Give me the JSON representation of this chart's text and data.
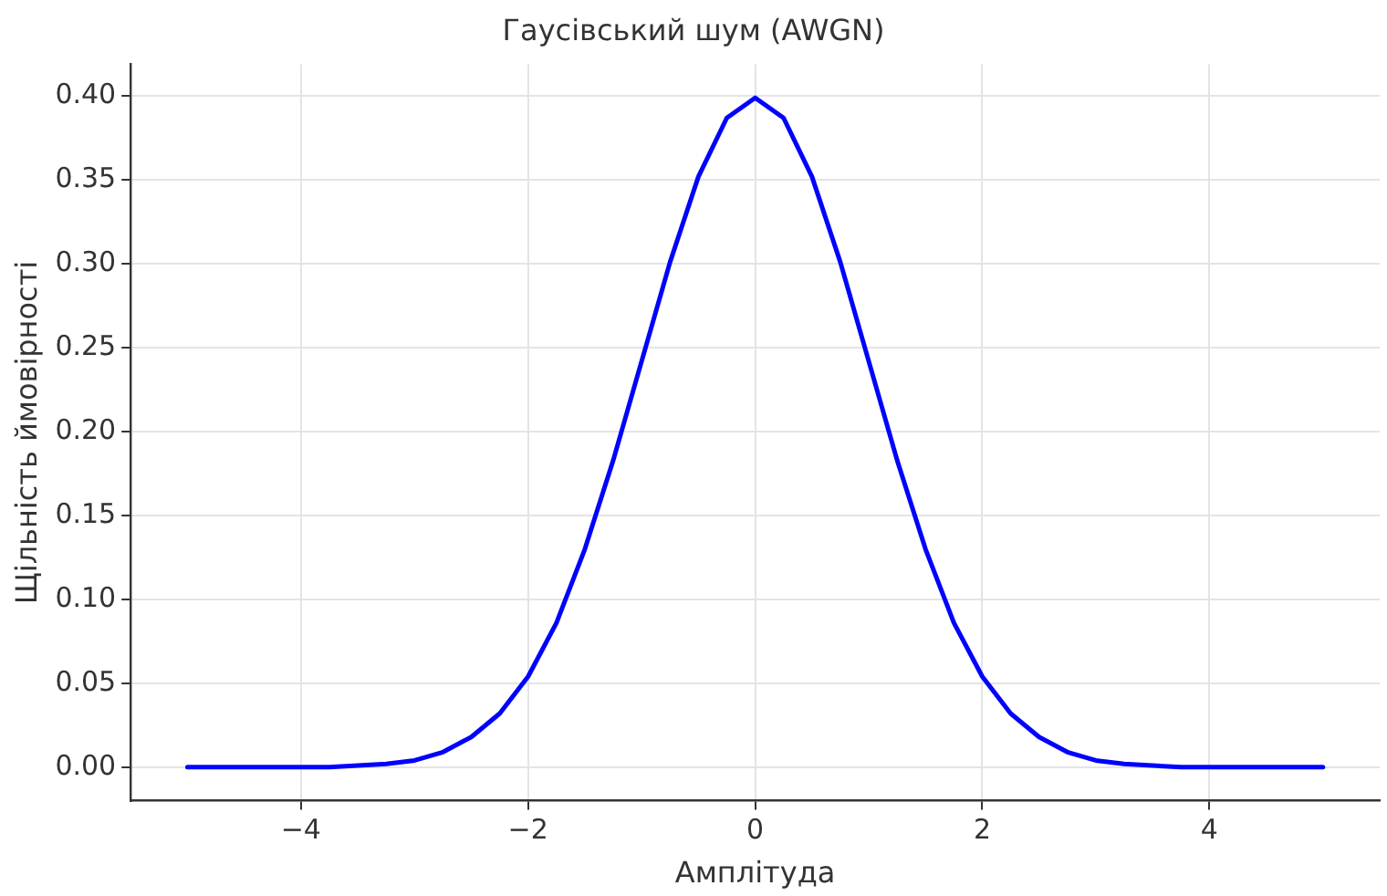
{
  "chart_data": {
    "type": "line",
    "title": "Гаусівський шум (AWGN)",
    "xlabel": "Амплітуда",
    "ylabel": "Щільність ймовірності",
    "x": [
      -5,
      -4.75,
      -4.5,
      -4.25,
      -4,
      -3.75,
      -3.5,
      -3.25,
      -3,
      -2.75,
      -2.5,
      -2.25,
      -2,
      -1.75,
      -1.5,
      -1.25,
      -1,
      -0.75,
      -0.5,
      -0.25,
      0,
      0.25,
      0.5,
      0.75,
      1,
      1.25,
      1.5,
      1.75,
      2,
      2.25,
      2.5,
      2.75,
      3,
      3.25,
      3.5,
      3.75,
      4,
      4.25,
      4.5,
      4.75,
      5
    ],
    "series": [
      {
        "color": "#0000ff",
        "values": [
          0,
          0,
          0,
          0,
          0,
          0,
          0.001,
          0.002,
          0.004,
          0.009,
          0.018,
          0.032,
          0.054,
          0.086,
          0.13,
          0.183,
          0.242,
          0.301,
          0.352,
          0.387,
          0.399,
          0.387,
          0.352,
          0.301,
          0.242,
          0.183,
          0.13,
          0.086,
          0.054,
          0.032,
          0.018,
          0.009,
          0.004,
          0.002,
          0.001,
          0,
          0,
          0,
          0,
          0,
          0
        ]
      }
    ],
    "xlim": [
      -5.5,
      5.5
    ],
    "xticks": [
      -4,
      -2,
      0,
      2,
      4
    ],
    "ylim": [
      -0.02,
      0.419
    ],
    "yticks": [
      {
        "value": 0,
        "label": "0.00"
      },
      {
        "value": 0.05,
        "label": "0.05"
      },
      {
        "value": 0.1,
        "label": "0.10"
      },
      {
        "value": 0.15,
        "label": "0.15"
      },
      {
        "value": 0.2,
        "label": "0.20"
      },
      {
        "value": 0.25,
        "label": "0.25"
      },
      {
        "value": 0.3,
        "label": "0.30"
      },
      {
        "value": 0.35,
        "label": "0.35"
      },
      {
        "value": 0.4,
        "label": "0.40"
      }
    ],
    "grid": true,
    "legend": false,
    "marker": "none",
    "line_style": "solid"
  }
}
